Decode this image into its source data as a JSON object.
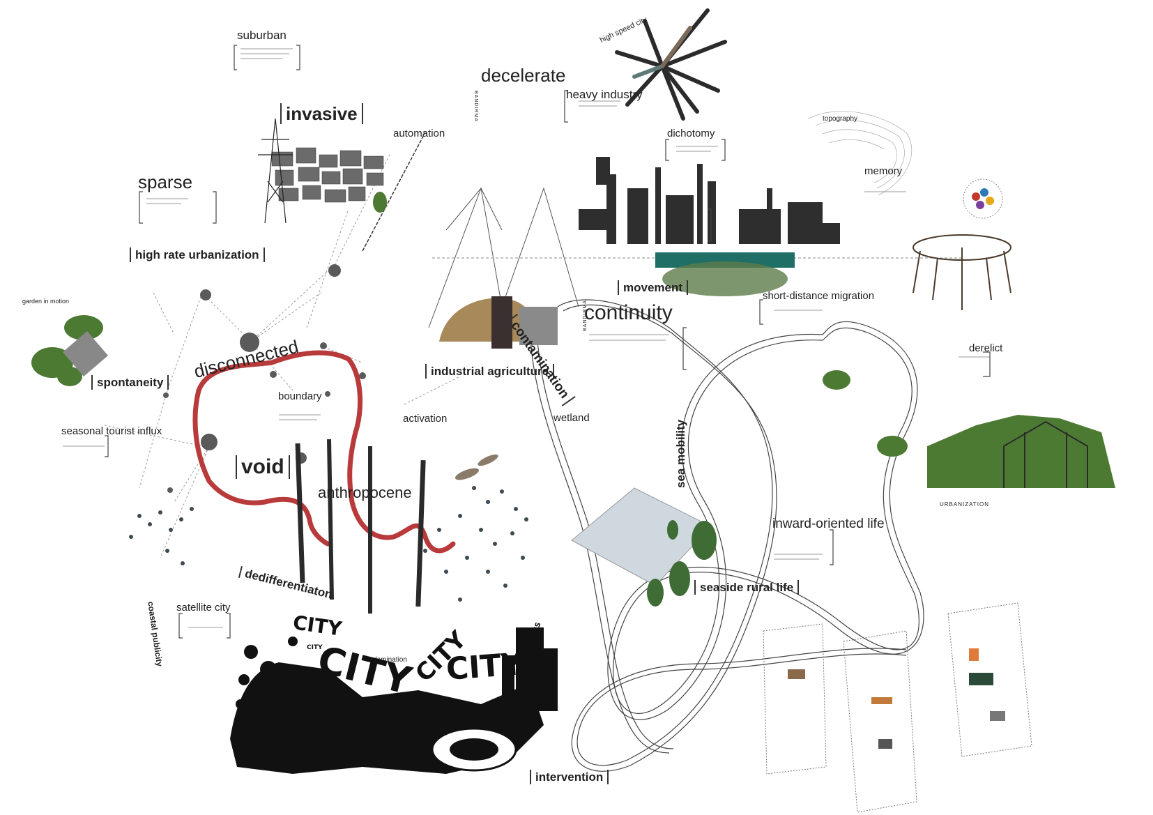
{
  "labels": {
    "suburban": "suburban",
    "decelerate": "decelerate",
    "heavy_industry": "heavy industry",
    "high_speed_city": "high speed city",
    "invasive": "invasive",
    "automation": "automation",
    "dichotomy": "dichotomy",
    "topography": "topography",
    "memory": "memory",
    "sparse": "sparse",
    "high_rate_urbanization": "high rate urbanization",
    "movement": "movement",
    "short_distance_migration": "short-distance migration",
    "continuity": "continuity",
    "garden_in_motion": "garden in motion",
    "spontaneity": "spontaneity",
    "disconnected": "disconnected",
    "boundary": "boundary",
    "industrial_agriculture": "industrial agriculture",
    "contamination": "contamination",
    "derelict": "derelict",
    "seasonal_tourist_influx": "seasonal tourist influx",
    "activation": "activation",
    "wetland": "wetland",
    "sea_mobility": "sea mobility",
    "void": "void",
    "anthropocene": "anthropocene",
    "urbanization": "URBANIZATION",
    "inward_oriented_life": "inward-oriented life",
    "dedifferentiaton": "dedifferentiaton",
    "seaside_rural_life": "seaside rural life",
    "coastal_publicity": "coastal publicity",
    "satellite_city": "satellite city",
    "domination": "domination",
    "intervention": "intervention",
    "bandirma": "BANDIRMA"
  },
  "city_words": {
    "city1": "CITY",
    "city2": "CITY",
    "city3": "CITY",
    "city4": "CITY",
    "city5": "CITY",
    "cities": "CITIES",
    "city_small": "CITY",
    "c_fragment": "Y ci"
  },
  "colors": {
    "red_path": "#b83a3a",
    "ink": "#222222",
    "node_gray": "#5a5a5a",
    "teal": "#1f6f66",
    "foliage": "#4d7a32",
    "sea_plane": "#cfd8df",
    "earth": "#a88a5a"
  }
}
